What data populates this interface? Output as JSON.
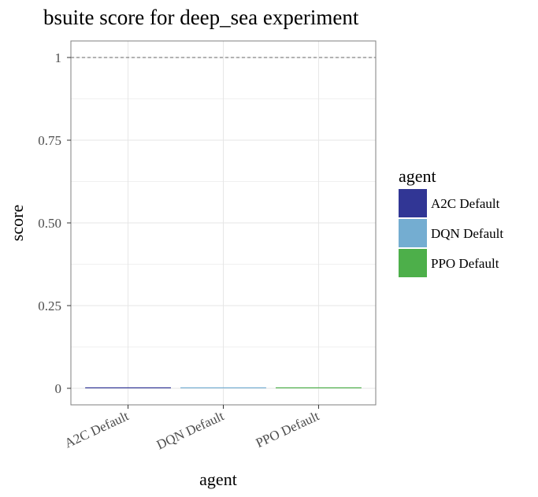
{
  "chart_data": {
    "type": "bar",
    "title": "bsuite score for deep_sea experiment",
    "xlabel": "agent",
    "ylabel": "score",
    "categories": [
      "A2C Default",
      "DQN Default",
      "PPO Default"
    ],
    "values": [
      0,
      0,
      0
    ],
    "colors": [
      "#313695",
      "#74add1",
      "#4daf4a"
    ],
    "ylim": [
      0,
      1
    ],
    "yticks": [
      {
        "value": 0,
        "label": "0"
      },
      {
        "value": 0.25,
        "label": "0.25"
      },
      {
        "value": 0.5,
        "label": "0.50"
      },
      {
        "value": 0.75,
        "label": "0.75"
      },
      {
        "value": 1,
        "label": "1"
      }
    ],
    "reference_line": {
      "value": 1,
      "style": "dashed"
    },
    "grid": true,
    "legend": {
      "title": "agent",
      "placement": "right",
      "entries": [
        "A2C Default",
        "DQN Default",
        "PPO Default"
      ]
    }
  }
}
